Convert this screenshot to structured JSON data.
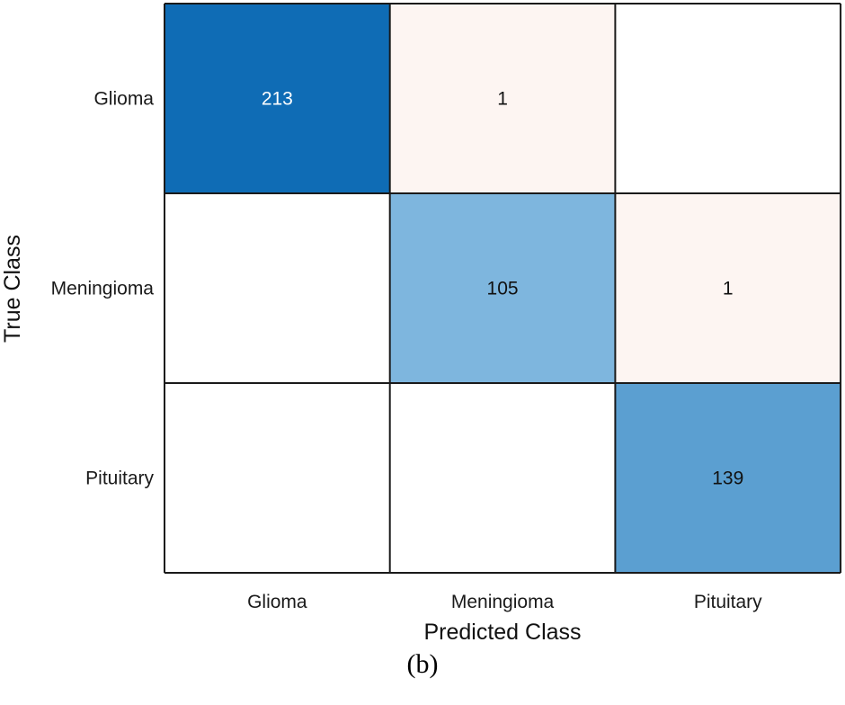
{
  "chart_data": {
    "type": "heatmap",
    "title": "",
    "xlabel": "Predicted Class",
    "ylabel": "True Class",
    "x_categories": [
      "Glioma",
      "Meningioma",
      "Pituitary"
    ],
    "y_categories": [
      "Glioma",
      "Meningioma",
      "Pituitary"
    ],
    "values": [
      [
        213,
        1,
        null
      ],
      [
        null,
        105,
        1
      ],
      [
        null,
        null,
        139
      ]
    ],
    "colors": {
      "diagonal_max": "#0f6cb5",
      "diagonal_min": "#7eb6de",
      "off_diagonal": "#fdf5f2",
      "empty": "#ffffff",
      "grid": "#1a1a1a",
      "text_dark": "#111111",
      "text_light": "#ffffff"
    }
  },
  "caption": "(b)"
}
